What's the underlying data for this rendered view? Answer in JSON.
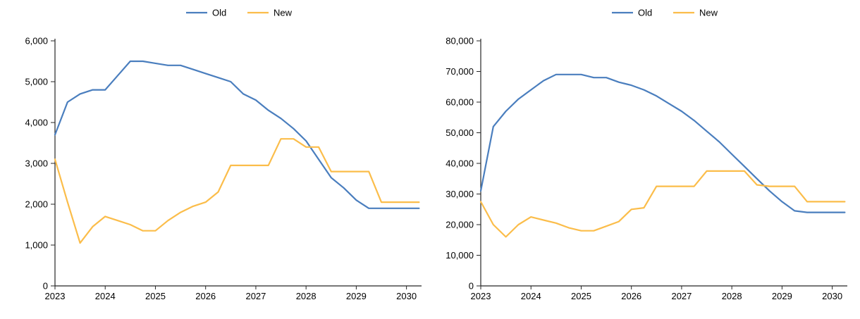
{
  "colors": {
    "old_series": "#4A7EBE",
    "new_series": "#FBBD4A",
    "axis": "#262626",
    "text": "#000000",
    "background": "#ffffff"
  },
  "legend": {
    "old_label": "Old",
    "new_label": "New"
  },
  "chart_data": [
    {
      "type": "line",
      "title": "",
      "xlabel": "",
      "ylabel": "",
      "grid": false,
      "legend_position": "top-center",
      "xlim": [
        2023,
        2030.3
      ],
      "ylim": [
        0,
        6000
      ],
      "yticks": [
        0,
        1000,
        2000,
        3000,
        4000,
        5000,
        6000
      ],
      "ytick_labels": [
        "0",
        "1,000",
        "2,000",
        "3,000",
        "4,000",
        "5,000",
        "6,000"
      ],
      "xticks": [
        2023,
        2024,
        2025,
        2026,
        2027,
        2028,
        2029,
        2030
      ],
      "xtick_labels": [
        "2023",
        "2024",
        "2025",
        "2026",
        "2027",
        "2028",
        "2029",
        "2030"
      ],
      "x": [
        2023,
        2023.25,
        2023.5,
        2023.75,
        2024,
        2024.25,
        2024.5,
        2024.75,
        2025,
        2025.25,
        2025.5,
        2025.75,
        2026,
        2026.25,
        2026.5,
        2026.75,
        2027,
        2027.25,
        2027.5,
        2027.75,
        2028,
        2028.25,
        2028.5,
        2028.75,
        2029,
        2029.25,
        2029.5,
        2029.75,
        2030,
        2030.25
      ],
      "series": [
        {
          "name": "Old",
          "color_key": "old_series",
          "values": [
            3700,
            4500,
            4700,
            4800,
            4800,
            5150,
            5500,
            5500,
            5450,
            5400,
            5400,
            5300,
            5200,
            5100,
            5000,
            4700,
            4550,
            4300,
            4100,
            3850,
            3550,
            3100,
            2650,
            2400,
            2100,
            1900,
            1900,
            1900,
            1900,
            1900
          ]
        },
        {
          "name": "New",
          "color_key": "new_series",
          "values": [
            3100,
            2050,
            1050,
            1450,
            1700,
            1600,
            1500,
            1350,
            1350,
            1600,
            1800,
            1950,
            2050,
            2300,
            2950,
            2950,
            2950,
            2950,
            3600,
            3600,
            3400,
            3400,
            2800,
            2800,
            2800,
            2800,
            2050,
            2050,
            2050,
            2050
          ]
        }
      ]
    },
    {
      "type": "line",
      "title": "",
      "xlabel": "",
      "ylabel": "",
      "grid": false,
      "legend_position": "top-center",
      "xlim": [
        2023,
        2030.3
      ],
      "ylim": [
        0,
        80000
      ],
      "yticks": [
        0,
        10000,
        20000,
        30000,
        40000,
        50000,
        60000,
        70000,
        80000
      ],
      "ytick_labels": [
        "0",
        "10,000",
        "20,000",
        "30,000",
        "40,000",
        "50,000",
        "60,000",
        "70,000",
        "80,000"
      ],
      "xticks": [
        2023,
        2024,
        2025,
        2026,
        2027,
        2028,
        2029,
        2030
      ],
      "xtick_labels": [
        "2023",
        "2024",
        "2025",
        "2026",
        "2027",
        "2028",
        "2029",
        "2030"
      ],
      "x": [
        2023,
        2023.25,
        2023.5,
        2023.75,
        2024,
        2024.25,
        2024.5,
        2024.75,
        2025,
        2025.25,
        2025.5,
        2025.75,
        2026,
        2026.25,
        2026.5,
        2026.75,
        2027,
        2027.25,
        2027.5,
        2027.75,
        2028,
        2028.25,
        2028.5,
        2028.75,
        2029,
        2029.25,
        2029.5,
        2029.75,
        2030,
        2030.25
      ],
      "series": [
        {
          "name": "Old",
          "color_key": "old_series",
          "values": [
            31000,
            52000,
            57000,
            61000,
            64000,
            67000,
            69000,
            69000,
            69000,
            68000,
            68000,
            66500,
            65500,
            64000,
            62000,
            59500,
            57000,
            54000,
            50500,
            47000,
            43000,
            39000,
            35000,
            31000,
            27500,
            24500,
            24000,
            24000,
            24000,
            24000
          ]
        },
        {
          "name": "New",
          "color_key": "new_series",
          "values": [
            27500,
            20000,
            16000,
            20000,
            22500,
            21500,
            20500,
            19000,
            18000,
            18000,
            19500,
            21000,
            25000,
            25500,
            32500,
            32500,
            32500,
            32500,
            37500,
            37500,
            37500,
            37500,
            33000,
            32500,
            32500,
            32500,
            27500,
            27500,
            27500,
            27500
          ]
        }
      ]
    }
  ]
}
